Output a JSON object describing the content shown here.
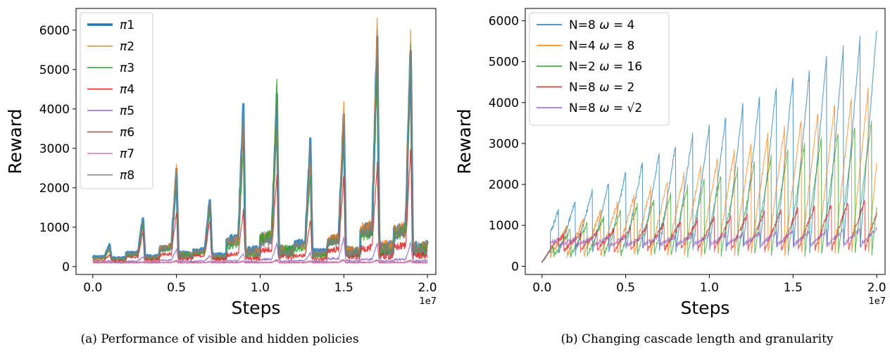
{
  "chart_data": [
    {
      "type": "line",
      "caption": "(a) Performance of visible and hidden policies",
      "xlabel": "Steps",
      "ylabel": "Reward",
      "x_offset_label": "1e7",
      "xlim": [
        -0.1,
        2.05
      ],
      "ylim": [
        -200,
        6550
      ],
      "xticks": [
        0.0,
        0.5,
        1.0,
        1.5,
        2.0
      ],
      "xtick_labels": [
        "0.0",
        "0.5",
        "1.0",
        "1.5",
        "2.0"
      ],
      "yticks": [
        0,
        1000,
        2000,
        3000,
        4000,
        5000,
        6000
      ],
      "ytick_labels": [
        "0",
        "1000",
        "2000",
        "3000",
        "4000",
        "5000",
        "6000"
      ],
      "grid": false,
      "legend_position": "top-left",
      "series": [
        {
          "name": "π1",
          "color": "#1f77b4",
          "width": 3.2,
          "peaks": [
            550,
            1250,
            2400,
            1750,
            4050,
            4300,
            3150,
            3900,
            5900,
            5650
          ],
          "baseline": 200
        },
        {
          "name": "π2",
          "color": "#ff7f0e",
          "width": 1.2,
          "peaks": [
            450,
            1150,
            2520,
            1600,
            3700,
            4650,
            2600,
            4250,
            6300,
            6000
          ],
          "baseline": 180
        },
        {
          "name": "π3",
          "color": "#2ca02c",
          "width": 1.2,
          "peaks": [
            420,
            1100,
            2350,
            1500,
            3000,
            4700,
            2300,
            3600,
            5200,
            5500
          ],
          "baseline": 170
        },
        {
          "name": "π4",
          "color": "#d62728",
          "width": 1.2,
          "peaks": [
            300,
            900,
            1400,
            1200,
            1450,
            2350,
            1200,
            2350,
            2650,
            3050
          ],
          "baseline": 140
        },
        {
          "name": "π5",
          "color": "#9467bd",
          "width": 1.2,
          "peaks": [
            150,
            250,
            450,
            280,
            330,
            600,
            350,
            750,
            600,
            600
          ],
          "baseline": 120
        },
        {
          "name": "π6",
          "color": "#8c564b",
          "width": 1.2,
          "peaks": [
            110,
            120,
            150,
            130,
            140,
            170,
            150,
            180,
            170,
            160
          ],
          "baseline": 100
        },
        {
          "name": "π7",
          "color": "#e377c2",
          "width": 1.2,
          "peaks": [
            100,
            110,
            130,
            120,
            130,
            150,
            130,
            160,
            150,
            140
          ],
          "baseline": 95
        },
        {
          "name": "π8",
          "color": "#7f7f7f",
          "width": 1.2,
          "peaks": [
            500,
            1200,
            2350,
            1700,
            3800,
            3550,
            3100,
            3700,
            5850,
            5600
          ],
          "baseline": 190
        }
      ]
    },
    {
      "type": "line",
      "caption": "(b) Changing cascade length and granularity",
      "xlabel": "Steps",
      "ylabel": "Reward",
      "x_offset_label": "1e7",
      "xlim": [
        -0.1,
        2.05
      ],
      "ylim": [
        -200,
        6300
      ],
      "xticks": [
        0.0,
        0.5,
        1.0,
        1.5,
        2.0
      ],
      "xtick_labels": [
        "0.0",
        "0.5",
        "1.0",
        "1.5",
        "2.0"
      ],
      "yticks": [
        0,
        1000,
        2000,
        3000,
        4000,
        5000,
        6000
      ],
      "ytick_labels": [
        "0",
        "1000",
        "2000",
        "3000",
        "4000",
        "5000",
        "6000"
      ],
      "grid": false,
      "legend_position": "top-left",
      "series": [
        {
          "name_parts": [
            "N=8 ",
            "ω",
            " = 4"
          ],
          "color": "#1f77b4",
          "period": 0.1,
          "start": 0,
          "peak_start": 1150,
          "peak_end": 5800,
          "drop": 320
        },
        {
          "name_parts": [
            "N=4 ",
            "ω",
            " = 8"
          ],
          "color": "#ff7f0e",
          "period": 0.1,
          "start": 0.05,
          "peak_start": 700,
          "peak_end": 4450,
          "drop": 250
        },
        {
          "name_parts": [
            "N=2 ",
            "ω",
            " = 16"
          ],
          "color": "#2ca02c",
          "period": 0.1,
          "start": 0.07,
          "peak_start": 650,
          "peak_end": 3650,
          "drop": 250
        },
        {
          "name_parts": [
            "N=8 ",
            "ω",
            " = 2"
          ],
          "color": "#d62728",
          "period": 0.1,
          "start": 0.03,
          "peak_start": 700,
          "peak_end": 1650,
          "drop": 380
        },
        {
          "name_parts": [
            "N=8 ",
            "ω",
            " = √2"
          ],
          "color": "#9467bd",
          "period": 0.1,
          "start": 0.0,
          "peak_start": 650,
          "peak_end": 900,
          "drop": 500
        }
      ]
    }
  ]
}
